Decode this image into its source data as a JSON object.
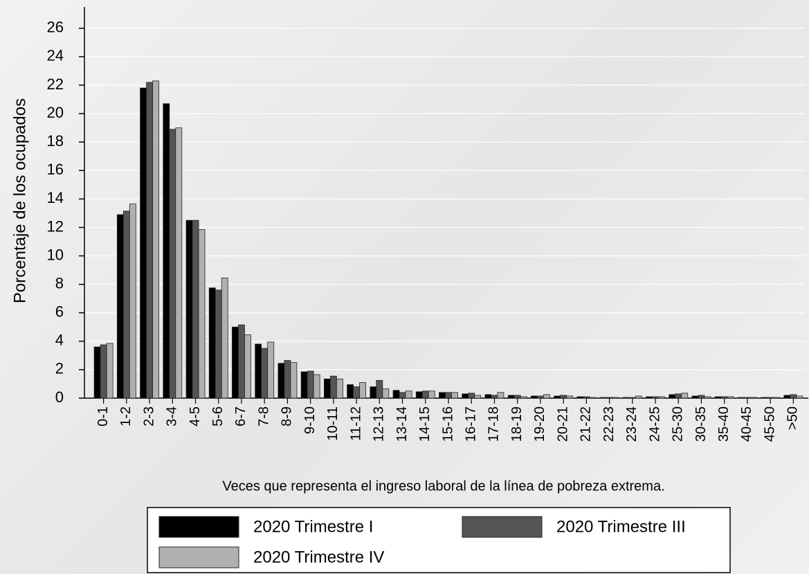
{
  "chart_data": {
    "type": "bar",
    "y_label": "Porcentaje de los ocupados",
    "x_label": "Veces que representa el ingreso laboral de la línea de pobreza extrema.",
    "categories": [
      "0-1",
      "1-2",
      "2-3",
      "3-4",
      "4-5",
      "5-6",
      "6-7",
      "7-8",
      "8-9",
      "9-10",
      "10-11",
      "11-12",
      "12-13",
      "13-14",
      "14-15",
      "15-16",
      "16-17",
      "17-18",
      "18-19",
      "19-20",
      "20-21",
      "21-22",
      "22-23",
      "23-24",
      "24-25",
      "25-30",
      "30-35",
      "35-40",
      "40-45",
      "45-50",
      ">50"
    ],
    "series": [
      {
        "name": "2020 Trimestre I",
        "color": "#000000",
        "values": [
          3.6,
          12.9,
          21.8,
          20.7,
          12.5,
          7.75,
          5.0,
          3.8,
          2.45,
          1.85,
          1.35,
          0.95,
          0.8,
          0.55,
          0.45,
          0.4,
          0.3,
          0.25,
          0.2,
          0.15,
          0.15,
          0.1,
          0.05,
          0.05,
          0.1,
          0.25,
          0.15,
          0.1,
          0.05,
          0.05,
          0.2
        ]
      },
      {
        "name": "2020 Trimestre III",
        "color": "#555555",
        "values": [
          3.75,
          13.15,
          22.2,
          18.9,
          12.5,
          7.6,
          5.15,
          3.5,
          2.65,
          1.9,
          1.55,
          0.8,
          1.25,
          0.4,
          0.5,
          0.4,
          0.35,
          0.2,
          0.2,
          0.15,
          0.2,
          0.1,
          0.05,
          0.05,
          0.1,
          0.3,
          0.2,
          0.1,
          0.05,
          0.05,
          0.25
        ]
      },
      {
        "name": "2020 Trimestre IV",
        "color": "#b0b0b0",
        "values": [
          3.85,
          13.65,
          22.3,
          19.0,
          11.85,
          8.45,
          4.45,
          3.95,
          2.5,
          1.65,
          1.35,
          1.1,
          0.65,
          0.5,
          0.5,
          0.4,
          0.2,
          0.4,
          0.1,
          0.25,
          0.15,
          0.05,
          0.05,
          0.15,
          0.1,
          0.35,
          0.1,
          0.1,
          0.05,
          0.05,
          0.15
        ]
      }
    ],
    "ylim": [
      0,
      27.5
    ],
    "yticks": [
      0,
      2,
      4,
      6,
      8,
      10,
      12,
      14,
      16,
      18,
      20,
      22,
      24,
      26
    ],
    "grid": true
  }
}
